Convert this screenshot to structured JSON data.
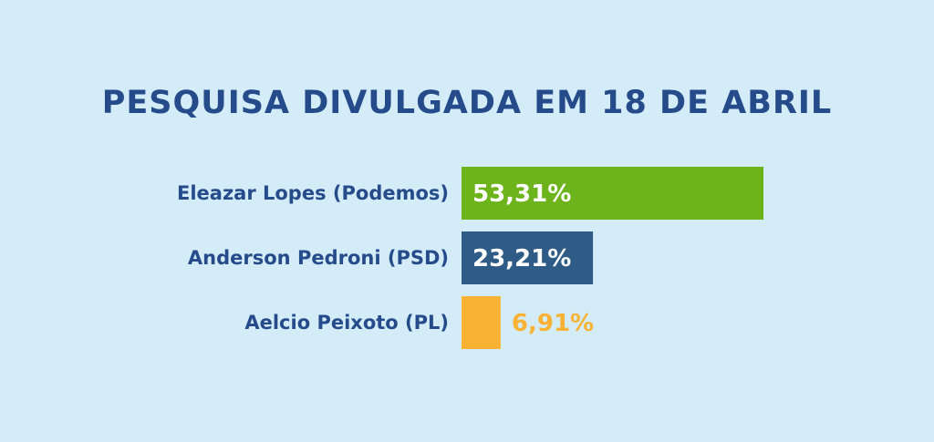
{
  "chart_data": {
    "type": "bar",
    "orientation": "horizontal",
    "title": "PESQUISA DIVULGADA EM 18 DE ABRIL",
    "categories": [
      "Eleazar Lopes (Podemos)",
      "Anderson Pedroni (PSD)",
      "Aelcio Peixoto (PL)"
    ],
    "values": [
      53.31,
      23.21,
      6.91
    ],
    "value_labels": [
      "53,31%",
      "23,21%",
      "6,91%"
    ],
    "colors": [
      "#6db31b",
      "#2e5c86",
      "#f9b233"
    ],
    "value_label_colors": [
      "#ffffff",
      "#ffffff",
      "#f9b233"
    ],
    "grid": false,
    "legend": "none"
  },
  "colors": {
    "background": "#d3ecf8",
    "title": "#254b8a",
    "category_label": "#254b8a"
  }
}
